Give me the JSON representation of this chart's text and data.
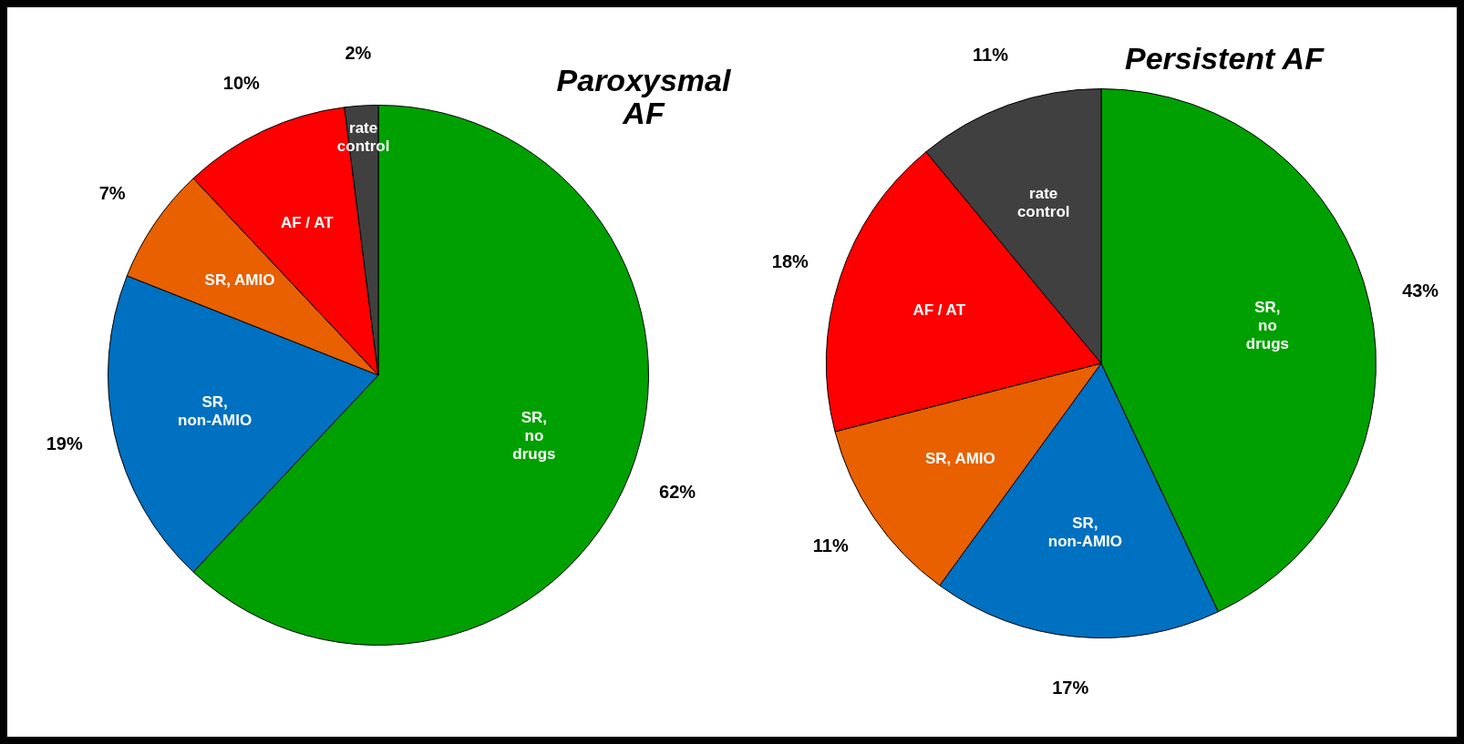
{
  "chart_data": [
    {
      "type": "pie",
      "title": "Paroxysmal AF",
      "categories": [
        "SR, no drugs",
        "SR, non-AMIO",
        "SR, AMIO",
        "AF / AT",
        "rate control"
      ],
      "values": [
        62,
        19,
        7,
        10,
        2
      ],
      "colors": [
        "#00a000",
        "#0070c0",
        "#e86000",
        "#ff0000",
        "#404040"
      ],
      "value_labels": [
        "62%",
        "19%",
        "7%",
        "10%",
        "2%"
      ],
      "legend": false
    },
    {
      "type": "pie",
      "title": "Persistent AF",
      "categories": [
        "SR, no drugs",
        "SR, non-AMIO",
        "SR, AMIO",
        "AF / AT",
        "rate control"
      ],
      "values": [
        43,
        17,
        11,
        18,
        11
      ],
      "colors": [
        "#00a000",
        "#0070c0",
        "#e86000",
        "#ff0000",
        "#404040"
      ],
      "value_labels": [
        "43%",
        "17%",
        "11%",
        "18%",
        "11%"
      ],
      "legend": false
    }
  ]
}
